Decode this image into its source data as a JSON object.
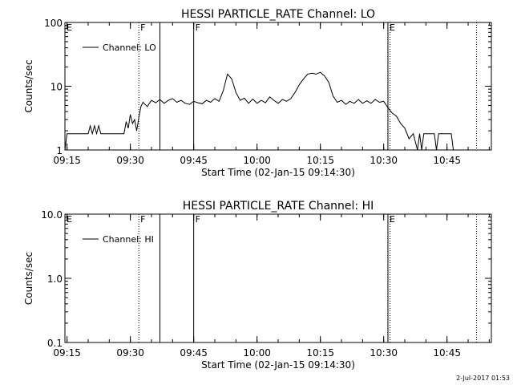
{
  "footer_date": "2-Jul-2017 01:53",
  "chart_data": [
    {
      "type": "line",
      "title": "HESSI PARTICLE_RATE Channel: LO",
      "xlabel": "Start Time (02-Jan-15 09:14:30)",
      "ylabel": "Counts/sec",
      "yscale": "log",
      "ylim": [
        1,
        100
      ],
      "xlim": [
        "09:14:30",
        "10:55:30"
      ],
      "xticks": [
        "09:15",
        "09:30",
        "09:45",
        "10:00",
        "10:15",
        "10:30",
        "10:45"
      ],
      "yticks": [
        "1",
        "10",
        "100"
      ],
      "legend": "Channel: LO",
      "legend_position": "top-left",
      "markers": [
        {
          "time": "09:32:00",
          "label": "F",
          "style": "dotted"
        },
        {
          "time": "09:37:00",
          "label": "",
          "style": "solid"
        },
        {
          "time": "09:45:00",
          "label": "F",
          "style": "solid"
        },
        {
          "time": "10:31:00",
          "label": "E",
          "style": "solid"
        },
        {
          "time": "10:31:30",
          "label": "",
          "style": "dotted"
        },
        {
          "time": "10:52:00",
          "label": "",
          "style": "dotted"
        }
      ],
      "corner_labels": [
        {
          "time": "09:14:30",
          "label": "E"
        }
      ],
      "series": [
        {
          "values": [
            [
              "09:14:30",
              1.0
            ],
            [
              "09:15:00",
              1.8
            ],
            [
              "09:20:00",
              1.8
            ],
            [
              "09:20:30",
              2.4
            ],
            [
              "09:21:00",
              1.8
            ],
            [
              "09:21:30",
              2.4
            ],
            [
              "09:22:00",
              1.8
            ],
            [
              "09:22:30",
              2.4
            ],
            [
              "09:23:00",
              1.8
            ],
            [
              "09:28:30",
              1.8
            ],
            [
              "09:29:00",
              2.8
            ],
            [
              "09:29:30",
              2.2
            ],
            [
              "09:30:00",
              3.6
            ],
            [
              "09:30:30",
              2.6
            ],
            [
              "09:31:00",
              3.0
            ],
            [
              "09:31:30",
              2.0
            ],
            [
              "09:32:00",
              3.2
            ],
            [
              "09:32:30",
              4.8
            ],
            [
              "09:33:00",
              5.6
            ],
            [
              "09:34:00",
              4.8
            ],
            [
              "09:35:00",
              6.0
            ],
            [
              "09:36:00",
              5.5
            ],
            [
              "09:37:00",
              6.2
            ],
            [
              "09:38:00",
              5.4
            ],
            [
              "09:39:00",
              6.0
            ],
            [
              "09:40:00",
              6.4
            ],
            [
              "09:41:00",
              5.6
            ],
            [
              "09:42:00",
              6.0
            ],
            [
              "09:43:00",
              5.4
            ],
            [
              "09:44:00",
              5.2
            ],
            [
              "09:45:00",
              5.8
            ],
            [
              "09:46:00",
              5.5
            ],
            [
              "09:47:00",
              5.3
            ],
            [
              "09:48:00",
              6.0
            ],
            [
              "09:49:00",
              5.6
            ],
            [
              "09:50:00",
              6.4
            ],
            [
              "09:51:00",
              5.8
            ],
            [
              "09:52:00",
              8.5
            ],
            [
              "09:53:00",
              15.5
            ],
            [
              "09:54:00",
              13.0
            ],
            [
              "09:55:00",
              8.0
            ],
            [
              "09:56:00",
              6.0
            ],
            [
              "09:57:00",
              6.5
            ],
            [
              "09:58:00",
              5.4
            ],
            [
              "09:59:00",
              6.3
            ],
            [
              "10:00:00",
              5.4
            ],
            [
              "10:01:00",
              6.0
            ],
            [
              "10:02:00",
              5.5
            ],
            [
              "10:03:00",
              6.8
            ],
            [
              "10:04:00",
              6.0
            ],
            [
              "10:05:00",
              5.4
            ],
            [
              "10:06:00",
              6.2
            ],
            [
              "10:07:00",
              5.8
            ],
            [
              "10:08:00",
              6.4
            ],
            [
              "10:09:00",
              8.0
            ],
            [
              "10:10:00",
              10.5
            ],
            [
              "10:11:00",
              13.0
            ],
            [
              "10:12:00",
              15.5
            ],
            [
              "10:13:00",
              16.0
            ],
            [
              "10:14:00",
              15.5
            ],
            [
              "10:15:00",
              16.5
            ],
            [
              "10:16:00",
              14.5
            ],
            [
              "10:17:00",
              11.5
            ],
            [
              "10:18:00",
              7.0
            ],
            [
              "10:19:00",
              5.6
            ],
            [
              "10:20:00",
              6.0
            ],
            [
              "10:21:00",
              5.2
            ],
            [
              "10:22:00",
              5.8
            ],
            [
              "10:23:00",
              5.4
            ],
            [
              "10:24:00",
              6.2
            ],
            [
              "10:25:00",
              5.4
            ],
            [
              "10:26:00",
              5.9
            ],
            [
              "10:27:00",
              5.4
            ],
            [
              "10:28:00",
              6.2
            ],
            [
              "10:29:00",
              5.6
            ],
            [
              "10:30:00",
              5.8
            ],
            [
              "10:31:00",
              4.6
            ],
            [
              "10:32:00",
              3.8
            ],
            [
              "10:33:00",
              3.4
            ],
            [
              "10:34:00",
              2.6
            ],
            [
              "10:35:00",
              2.2
            ],
            [
              "10:36:00",
              1.5
            ],
            [
              "10:37:00",
              1.8
            ],
            [
              "10:38:00",
              1.0
            ],
            [
              "10:38:30",
              1.8
            ],
            [
              "10:39:00",
              1.0
            ],
            [
              "10:39:30",
              1.8
            ],
            [
              "10:42:00",
              1.8
            ],
            [
              "10:42:30",
              1.0
            ],
            [
              "10:43:00",
              1.8
            ],
            [
              "10:46:00",
              1.8
            ],
            [
              "10:46:30",
              1.0
            ]
          ]
        }
      ]
    },
    {
      "type": "line",
      "title": "HESSI PARTICLE_RATE Channel: HI",
      "xlabel": "Start Time (02-Jan-15 09:14:30)",
      "ylabel": "Counts/sec",
      "yscale": "log",
      "ylim": [
        0.1,
        10
      ],
      "xlim": [
        "09:14:30",
        "10:55:30"
      ],
      "xticks": [
        "09:15",
        "09:30",
        "09:45",
        "10:00",
        "10:15",
        "10:30",
        "10:45"
      ],
      "yticks": [
        "0.1",
        "1.0",
        "10.0"
      ],
      "legend": "Channel: HI",
      "legend_position": "top-left",
      "markers": [
        {
          "time": "09:32:00",
          "label": "F",
          "style": "dotted"
        },
        {
          "time": "09:37:00",
          "label": "",
          "style": "solid"
        },
        {
          "time": "09:45:00",
          "label": "F",
          "style": "solid"
        },
        {
          "time": "10:31:00",
          "label": "E",
          "style": "solid"
        },
        {
          "time": "10:31:30",
          "label": "",
          "style": "dotted"
        },
        {
          "time": "10:52:00",
          "label": "",
          "style": "dotted"
        }
      ],
      "corner_labels": [
        {
          "time": "09:14:30",
          "label": "E"
        }
      ],
      "series": []
    }
  ]
}
